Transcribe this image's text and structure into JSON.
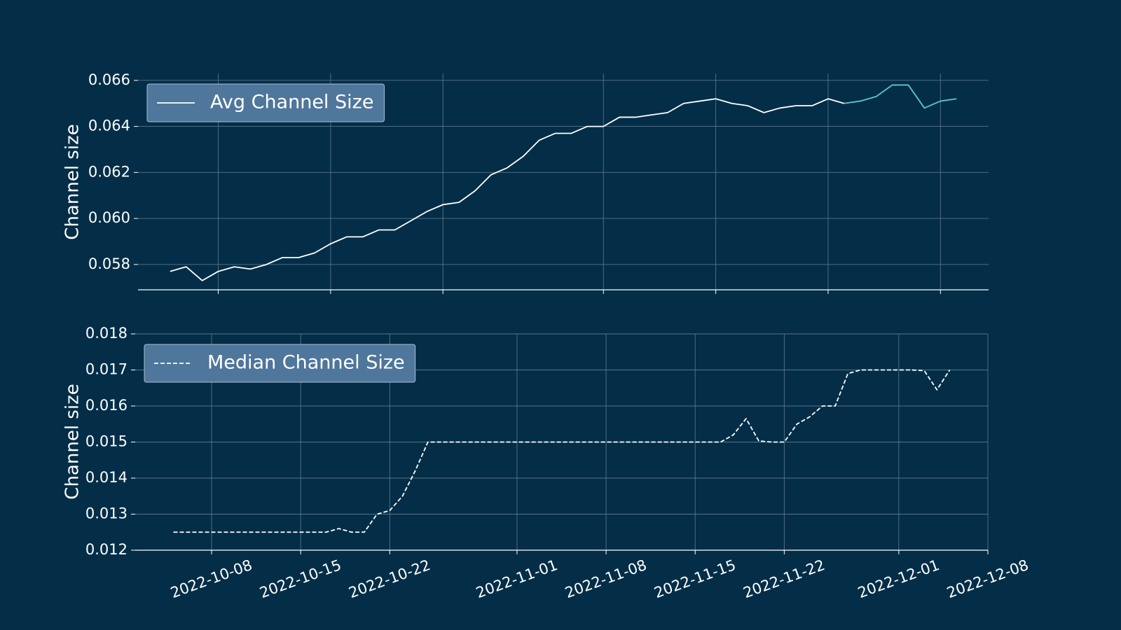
{
  "chart_data": [
    {
      "type": "line",
      "ylabel": "Channel size",
      "legend": "upper left",
      "grid": true,
      "x": [
        "2022-10-05",
        "2022-10-06",
        "2022-10-07",
        "2022-10-08",
        "2022-10-09",
        "2022-10-10",
        "2022-10-11",
        "2022-10-12",
        "2022-10-13",
        "2022-10-14",
        "2022-10-15",
        "2022-10-16",
        "2022-10-17",
        "2022-10-18",
        "2022-10-19",
        "2022-10-20",
        "2022-10-21",
        "2022-10-22",
        "2022-10-23",
        "2022-10-24",
        "2022-10-25",
        "2022-10-26",
        "2022-10-27",
        "2022-10-28",
        "2022-10-29",
        "2022-10-30",
        "2022-10-31",
        "2022-11-01",
        "2022-11-02",
        "2022-11-03",
        "2022-11-04",
        "2022-11-05",
        "2022-11-06",
        "2022-11-07",
        "2022-11-08",
        "2022-11-09",
        "2022-11-10",
        "2022-11-11",
        "2022-11-12",
        "2022-11-13",
        "2022-11-14",
        "2022-11-15",
        "2022-11-16",
        "2022-11-17",
        "2022-11-18",
        "2022-11-19",
        "2022-11-20",
        "2022-11-21",
        "2022-11-22",
        "2022-11-23"
      ],
      "series": [
        {
          "name": "Avg Channel Size",
          "color": "#ffffff",
          "linestyle": "solid",
          "values": [
            0.0577,
            0.0579,
            0.0573,
            0.0577,
            0.0579,
            0.0578,
            0.058,
            0.0583,
            0.0583,
            0.0585,
            0.0589,
            0.0592,
            0.0592,
            0.0595,
            0.0595,
            0.0599,
            0.0603,
            0.0606,
            0.0607,
            0.0612,
            0.0619,
            0.0622,
            0.0627,
            0.0634,
            0.0637,
            0.0637,
            0.064,
            0.064,
            0.0644,
            0.0644,
            0.0645,
            0.0646,
            0.065,
            0.0651,
            0.0652,
            0.065,
            0.0649,
            0.0646,
            0.0648,
            0.0649,
            0.0649,
            0.0652,
            0.065,
            null,
            null,
            null,
            null,
            null,
            null,
            null
          ]
        },
        {
          "color": "#5cc8c8",
          "linestyle": "solid",
          "values": [
            null,
            null,
            null,
            null,
            null,
            null,
            null,
            null,
            null,
            null,
            null,
            null,
            null,
            null,
            null,
            null,
            null,
            null,
            null,
            null,
            null,
            null,
            null,
            null,
            null,
            null,
            null,
            null,
            null,
            null,
            null,
            null,
            null,
            null,
            null,
            null,
            null,
            null,
            null,
            null,
            null,
            null,
            0.065,
            0.0651,
            0.0653,
            0.0658,
            0.0658,
            0.0648,
            0.0651,
            0.0652
          ]
        }
      ],
      "xlim": [
        "2022-10-03",
        "2022-11-25"
      ],
      "xticks": [
        "2022-10-08",
        "2022-10-15",
        "2022-10-22",
        "2022-11-01",
        "2022-11-08",
        "2022-11-15",
        "2022-11-22"
      ],
      "ylim": [
        0.0569,
        0.0663
      ],
      "yticks": [
        0.058,
        {
          "value": 0.06,
          "label": "0.060"
        },
        0.062,
        0.064,
        0.066
      ]
    },
    {
      "type": "line",
      "ylabel": "Channel size",
      "legend": "upper left",
      "grid": true,
      "x": [
        "2022-10-05",
        "2022-10-06",
        "2022-10-07",
        "2022-10-08",
        "2022-10-09",
        "2022-10-10",
        "2022-10-11",
        "2022-10-12",
        "2022-10-13",
        "2022-10-14",
        "2022-10-15",
        "2022-10-16",
        "2022-10-17",
        "2022-10-18",
        "2022-10-19",
        "2022-10-20",
        "2022-10-21",
        "2022-10-22",
        "2022-10-23",
        "2022-10-24",
        "2022-10-25",
        "2022-10-26",
        "2022-10-27",
        "2022-10-28",
        "2022-10-29",
        "2022-10-30",
        "2022-10-31",
        "2022-11-01",
        "2022-11-02",
        "2022-11-03",
        "2022-11-04",
        "2022-11-05",
        "2022-11-06",
        "2022-11-07",
        "2022-11-08",
        "2022-11-09",
        "2022-11-10",
        "2022-11-11",
        "2022-11-12",
        "2022-11-13",
        "2022-11-14",
        "2022-11-15",
        "2022-11-16",
        "2022-11-17",
        "2022-11-18",
        "2022-11-19",
        "2022-11-20",
        "2022-11-21",
        "2022-11-22",
        "2022-11-23",
        "2022-11-24",
        "2022-11-25",
        "2022-11-26",
        "2022-11-27",
        "2022-11-28",
        "2022-11-29",
        "2022-11-30",
        "2022-12-01",
        "2022-12-02",
        "2022-12-03",
        "2022-12-04",
        "2022-12-05"
      ],
      "series": [
        {
          "name": "Median Channel Size",
          "color": "#ffffff",
          "linestyle": "dashed",
          "values": [
            0.0125,
            0.0125,
            0.0125,
            0.0125,
            0.0125,
            0.0125,
            0.0125,
            0.0125,
            0.0125,
            0.0125,
            0.0125,
            0.0125,
            0.0125,
            0.0126,
            0.0125,
            0.0125,
            0.013,
            0.0131,
            0.0135,
            0.0142,
            0.015,
            0.015,
            0.015,
            0.015,
            0.015,
            0.015,
            0.015,
            0.015,
            0.015,
            0.015,
            0.015,
            0.015,
            0.015,
            0.015,
            0.015,
            0.015,
            0.015,
            0.015,
            0.015,
            0.015,
            0.015,
            0.015,
            0.015,
            0.015,
            0.0152,
            0.01565,
            0.01503,
            0.015,
            0.015,
            0.0155,
            0.0157,
            0.016,
            0.016,
            0.0169,
            0.017,
            0.017,
            0.017,
            0.017,
            0.017,
            0.01698,
            0.01645,
            0.017
          ]
        }
      ],
      "xlim": [
        "2022-10-02",
        "2022-12-08"
      ],
      "xticks": [
        "2022-10-08",
        "2022-10-15",
        "2022-10-22",
        "2022-11-01",
        "2022-11-08",
        "2022-11-15",
        "2022-11-22",
        "2022-12-01",
        "2022-12-08"
      ],
      "ylim": [
        0.012,
        0.018
      ],
      "yticks": [
        0.012,
        0.013,
        0.014,
        0.015,
        0.016,
        0.017,
        0.018
      ]
    }
  ]
}
